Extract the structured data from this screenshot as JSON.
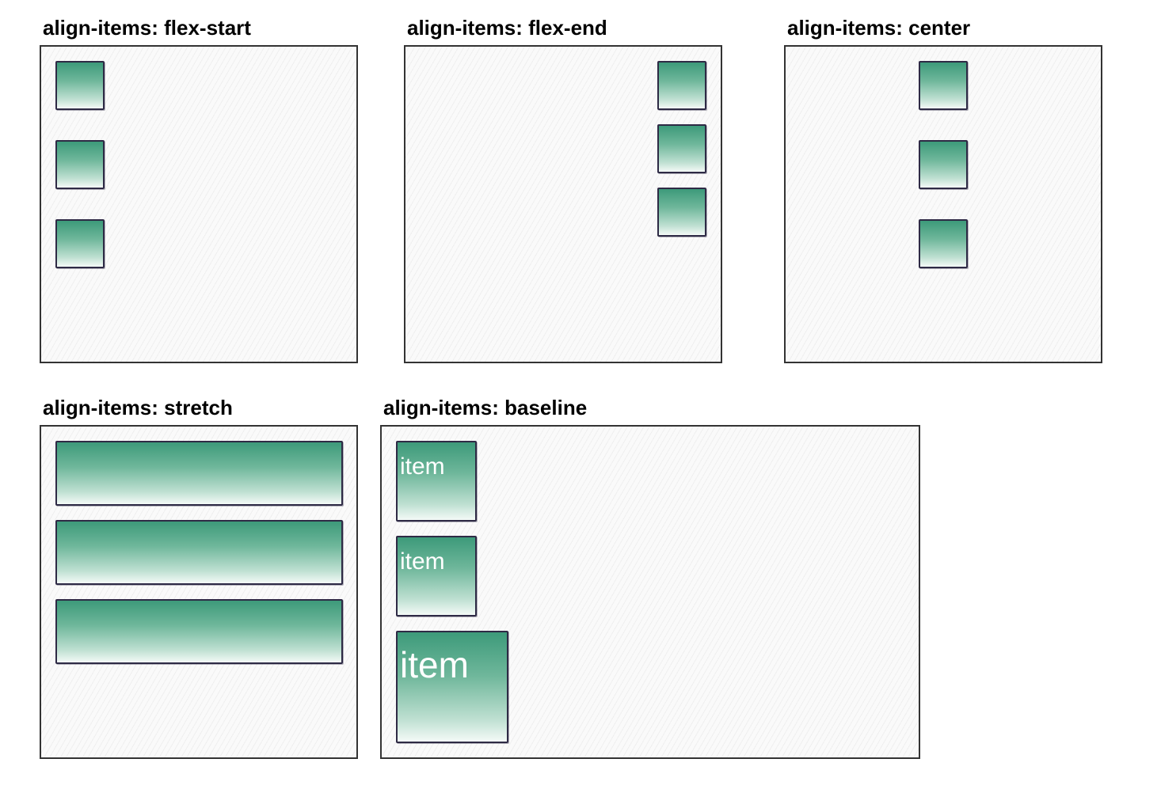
{
  "panels": {
    "flex_start": {
      "title": "align-items: flex-start"
    },
    "flex_end": {
      "title": "align-items: flex-end"
    },
    "center": {
      "title": "align-items: center"
    },
    "stretch": {
      "title": "align-items: stretch"
    },
    "baseline": {
      "title": "align-items: baseline",
      "items": [
        "item",
        "item",
        "item"
      ]
    }
  },
  "colors": {
    "item_top": "#3d9a7a",
    "item_bottom": "#f4faf7",
    "item_border": "#2e2a45",
    "panel_border": "#333333",
    "panel_fill": "#fafafa"
  }
}
